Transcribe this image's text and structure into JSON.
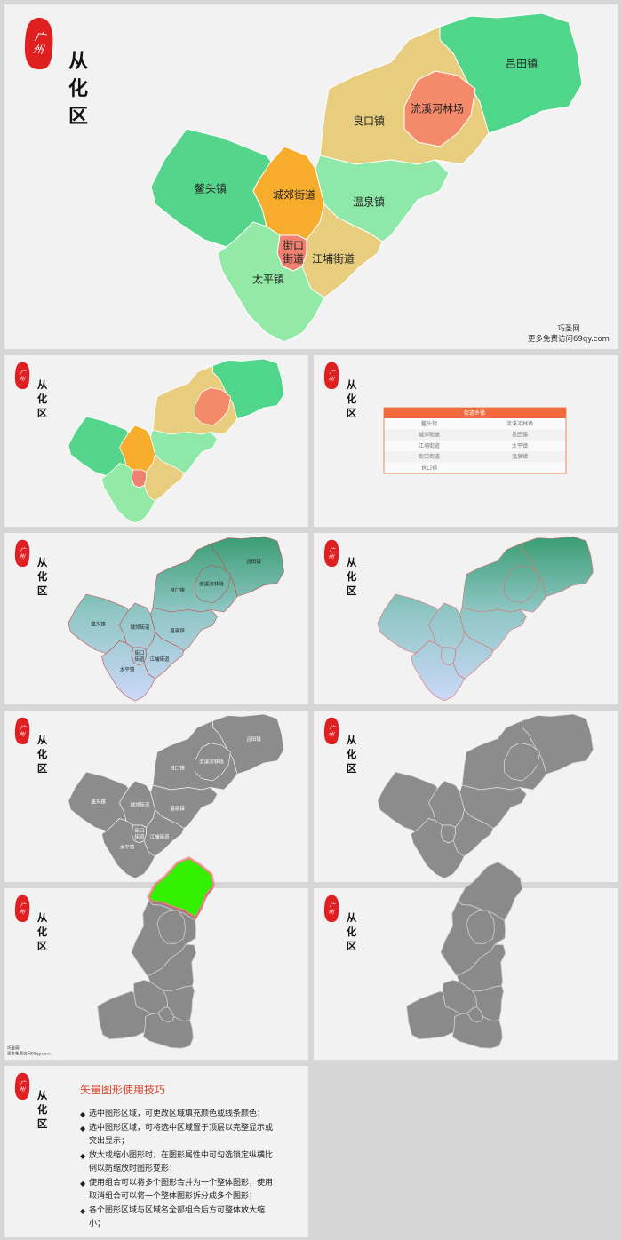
{
  "brand": {
    "seal": "广州",
    "title": "从化区"
  },
  "watermark": {
    "site": "巧圣网",
    "url": "更多免费访问69qy.com"
  },
  "regions": [
    "吕田镇",
    "良口镇",
    "流溪河林场",
    "鳌头镇",
    "城郊街道",
    "温泉镇",
    "街口街道",
    "江埔街道",
    "太平镇"
  ],
  "table": {
    "header": "街道乡镇",
    "rows": [
      [
        "鳌头镇",
        "流溪河林场"
      ],
      [
        "城郊街道",
        "吕田镇"
      ],
      [
        "江埔街道",
        "太平镇"
      ],
      [
        "街口街道",
        "温泉镇"
      ],
      [
        "良口镇"
      ]
    ]
  },
  "tips": {
    "title": "矢量图形使用技巧",
    "items": [
      "选中图形区域，可更改区域填充颜色或线条颜色；",
      "选中图形区域，可将选中区域置于顶层以完整显示或突出显示；",
      "放大或缩小图形时，在图形属性中可勾选锁定纵横比例以防缩放时图形变形；",
      "使用组合可以将多个图形合并为一个整体图形，使用取消组合可以将一个整体图形拆分成多个图形；",
      "各个图形区域与区域名全部组合后方可整体放大缩小；"
    ]
  }
}
